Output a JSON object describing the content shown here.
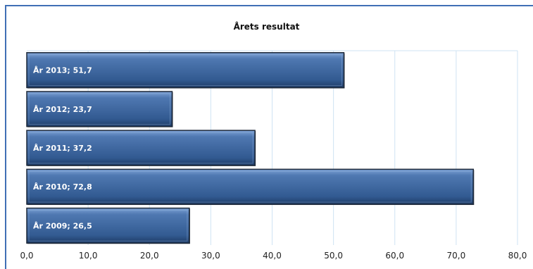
{
  "chart_data": {
    "type": "bar",
    "orientation": "horizontal",
    "title": "Årets resultat",
    "categories": [
      "År 2013",
      "År 2012",
      "År 2011",
      "År 2010",
      "År 2009"
    ],
    "values": [
      51.7,
      23.7,
      37.2,
      72.8,
      26.5
    ],
    "data_labels": [
      "År 2013; 51,7",
      "År 2012; 23,7",
      "År 2011; 37,2",
      "År 2010; 72,8",
      "År 2009; 26,5"
    ],
    "xlim": [
      0,
      80
    ],
    "x_ticks": [
      "0,0",
      "10,0",
      "20,0",
      "30,0",
      "40,0",
      "50,0",
      "60,0",
      "70,0",
      "80,0"
    ],
    "xlabel": "",
    "ylabel": "",
    "grid": true,
    "legend": "none"
  },
  "colors": {
    "bar_fill": "#3b6399",
    "bar_fill_light": "#5f87bf",
    "bar_border": "#1f2a3a",
    "grid": "#cfe3f3",
    "frame": "#3f6fb5"
  }
}
